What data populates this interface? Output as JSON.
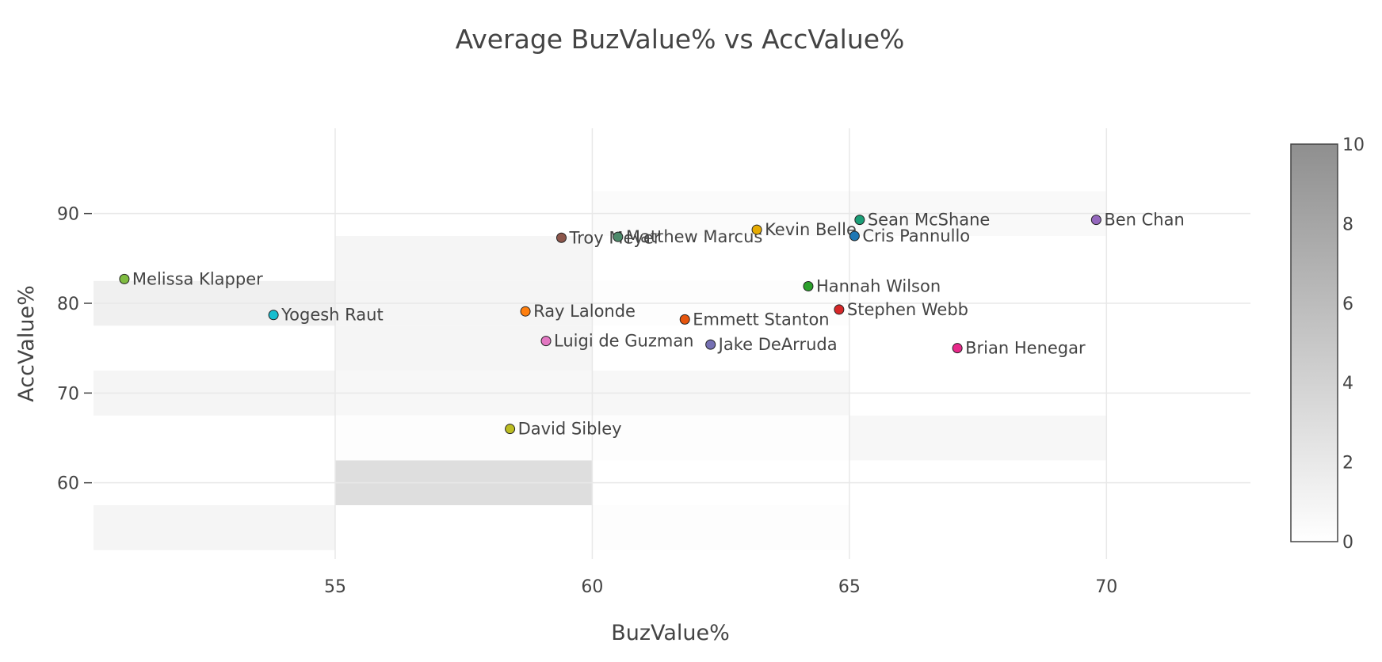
{
  "chart_data": {
    "type": "scatter",
    "title": "Average BuzValue% vs AccValue%",
    "xlabel": "BuzValue%",
    "ylabel": "AccValue%",
    "xlim": [
      50.3,
      72.8
    ],
    "ylim": [
      51.5,
      99.5
    ],
    "xticks": [
      55,
      60,
      65,
      70
    ],
    "yticks": [
      60,
      70,
      80,
      90
    ],
    "grid": true,
    "points": [
      {
        "label": "Melissa Klapper",
        "x": 50.9,
        "y": 82.7,
        "color": "#7fbc41"
      },
      {
        "label": "Yogesh Raut",
        "x": 53.8,
        "y": 78.7,
        "color": "#17becf"
      },
      {
        "label": "Troy Meyer",
        "x": 59.4,
        "y": 87.3,
        "color": "#8c564b"
      },
      {
        "label": "Matthew Marcus",
        "x": 60.5,
        "y": 87.4,
        "color": "#4d8a6b"
      },
      {
        "label": "Kevin Belle",
        "x": 63.2,
        "y": 88.2,
        "color": "#e6ab02"
      },
      {
        "label": "Sean McShane",
        "x": 65.2,
        "y": 89.3,
        "color": "#1b9e77"
      },
      {
        "label": "Cris Pannullo",
        "x": 65.1,
        "y": 87.5,
        "color": "#1f77b4"
      },
      {
        "label": "Ben Chan",
        "x": 69.8,
        "y": 89.3,
        "color": "#9467bd"
      },
      {
        "label": "Hannah Wilson",
        "x": 64.2,
        "y": 81.9,
        "color": "#2ca02c"
      },
      {
        "label": "Ray Lalonde",
        "x": 58.7,
        "y": 79.1,
        "color": "#ff7f0e"
      },
      {
        "label": "Emmett Stanton",
        "x": 61.8,
        "y": 78.2,
        "color": "#e6550d"
      },
      {
        "label": "Stephen Webb",
        "x": 64.8,
        "y": 79.3,
        "color": "#d62728"
      },
      {
        "label": "Luigi de Guzman",
        "x": 59.1,
        "y": 75.8,
        "color": "#e377c2"
      },
      {
        "label": "Jake DeArruda",
        "x": 62.3,
        "y": 75.4,
        "color": "#7570b3"
      },
      {
        "label": "Brian Henegar",
        "x": 67.1,
        "y": 75.0,
        "color": "#e7298a"
      },
      {
        "label": "David Sibley",
        "x": 58.4,
        "y": 66.0,
        "color": "#bcbd22"
      }
    ],
    "heatmap": {
      "x_edges": [
        50.3,
        55,
        60,
        65,
        70,
        72.8
      ],
      "y_bins": [
        {
          "range": [
            52.5,
            57.5
          ],
          "counts": [
            1,
            0,
            0.2,
            0,
            0
          ]
        },
        {
          "range": [
            57.5,
            62.5
          ],
          "counts": [
            0,
            3.2,
            0,
            0,
            0
          ]
        },
        {
          "range": [
            62.5,
            67.5
          ],
          "counts": [
            0,
            0.2,
            0.2,
            0.8,
            0
          ]
        },
        {
          "range": [
            67.5,
            72.5
          ],
          "counts": [
            1,
            0.8,
            0.8,
            0,
            0
          ]
        },
        {
          "range": [
            72.5,
            77.5
          ],
          "counts": [
            0,
            1,
            0,
            0,
            0
          ]
        },
        {
          "range": [
            77.5,
            82.5
          ],
          "counts": [
            1.4,
            1,
            0.2,
            0,
            0
          ]
        },
        {
          "range": [
            82.5,
            87.5
          ],
          "counts": [
            0,
            1,
            0,
            0,
            0
          ]
        },
        {
          "range": [
            87.5,
            92.5
          ],
          "counts": [
            0,
            0,
            0.4,
            0.6,
            0
          ]
        },
        {
          "range": [
            92.5,
            97.5
          ],
          "counts": [
            0,
            0,
            0,
            0,
            0
          ]
        }
      ]
    },
    "colorbar": {
      "min": 0,
      "max": 10,
      "ticks": [
        0,
        2,
        4,
        6,
        8,
        10
      ]
    }
  }
}
